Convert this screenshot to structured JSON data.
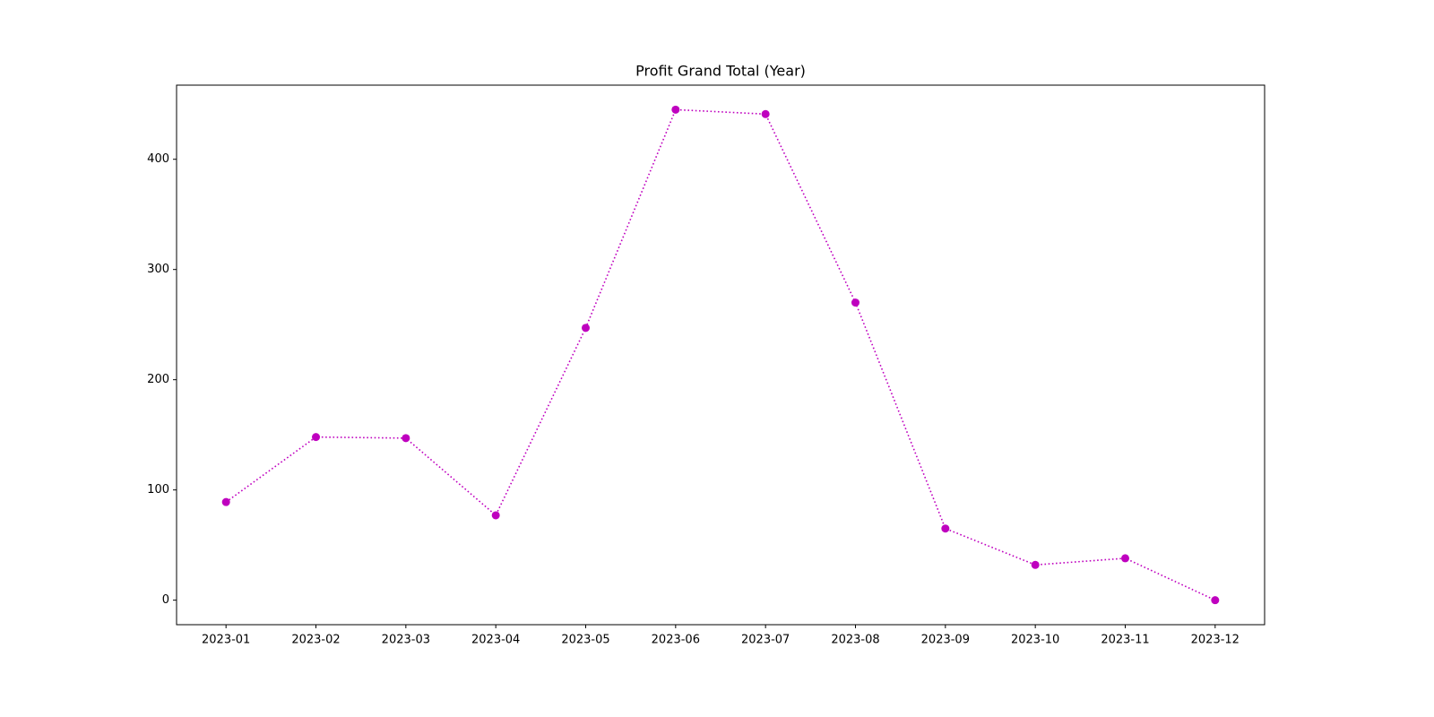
{
  "chart_data": {
    "type": "line",
    "title": "Profit Grand Total (Year)",
    "categories": [
      "2023-01",
      "2023-02",
      "2023-03",
      "2023-04",
      "2023-05",
      "2023-06",
      "2023-07",
      "2023-08",
      "2023-09",
      "2023-10",
      "2023-11",
      "2023-12"
    ],
    "values": [
      89,
      148,
      147,
      77,
      247,
      445,
      441,
      270,
      65,
      32,
      38,
      0
    ],
    "color": "#bf00bf",
    "line_style": "dotted",
    "marker": "circle",
    "ylim": [
      -22.25,
      467.25
    ],
    "yticks": [
      0,
      100,
      200,
      300,
      400
    ],
    "grid": false
  }
}
